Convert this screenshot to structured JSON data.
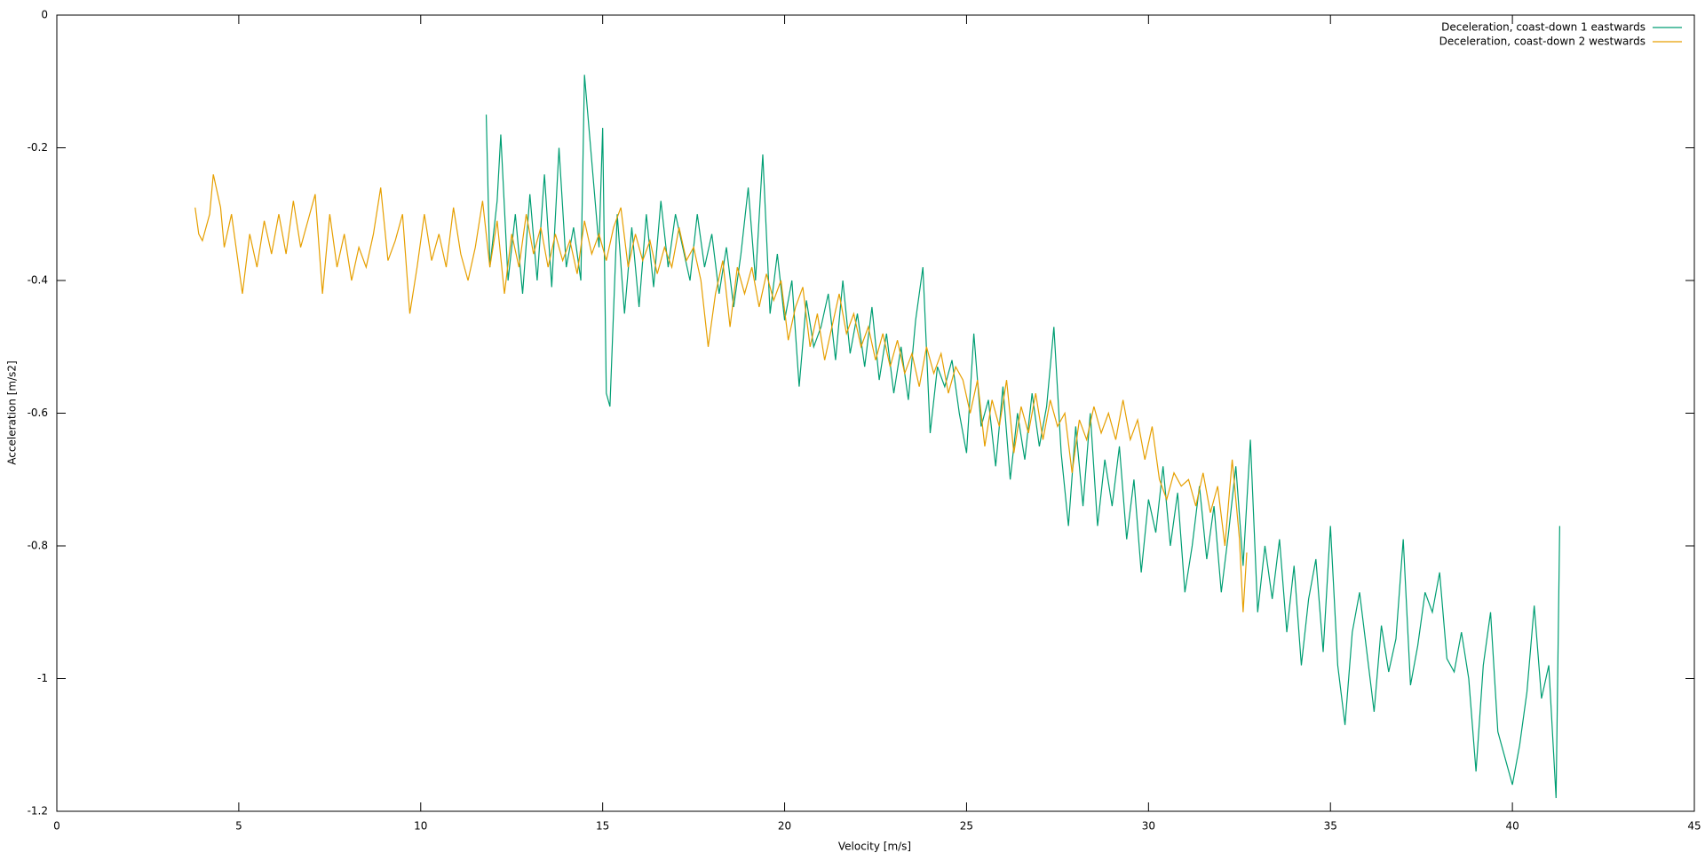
{
  "chart_data": {
    "type": "line",
    "xlabel": "Velocity [m/s]",
    "ylabel": "Acceleration [m/s2]",
    "xlim": [
      0,
      45
    ],
    "xticks": [
      0,
      5,
      10,
      15,
      20,
      25,
      30,
      35,
      40,
      45
    ],
    "ylim": [
      -1.2,
      0
    ],
    "yticks": [
      0,
      -0.2,
      -0.4,
      -0.6,
      -0.8,
      -1,
      -1.2
    ],
    "legend": "top-right",
    "series": [
      {
        "name": "Deceleration, coast-down 1 eastwards",
        "color": "#009e73",
        "x": [
          11.8,
          11.9,
          12.1,
          12.2,
          12.4,
          12.6,
          12.8,
          13.0,
          13.2,
          13.4,
          13.6,
          13.8,
          14.0,
          14.2,
          14.4,
          14.5,
          14.7,
          14.9,
          15.0,
          15.1,
          15.2,
          15.4,
          15.6,
          15.8,
          16.0,
          16.2,
          16.4,
          16.6,
          16.8,
          17.0,
          17.2,
          17.4,
          17.6,
          17.8,
          18.0,
          18.2,
          18.4,
          18.6,
          18.8,
          19.0,
          19.2,
          19.4,
          19.6,
          19.8,
          20.0,
          20.2,
          20.4,
          20.6,
          20.8,
          21.0,
          21.2,
          21.4,
          21.6,
          21.8,
          22.0,
          22.2,
          22.4,
          22.6,
          22.8,
          23.0,
          23.2,
          23.4,
          23.6,
          23.8,
          24.0,
          24.2,
          24.4,
          24.6,
          24.8,
          25.0,
          25.2,
          25.4,
          25.6,
          25.8,
          26.0,
          26.2,
          26.4,
          26.6,
          26.8,
          27.0,
          27.2,
          27.4,
          27.6,
          27.8,
          28.0,
          28.2,
          28.4,
          28.6,
          28.8,
          29.0,
          29.2,
          29.4,
          29.6,
          29.8,
          30.0,
          30.2,
          30.4,
          30.6,
          30.8,
          31.0,
          31.2,
          31.4,
          31.6,
          31.8,
          32.0,
          32.2,
          32.4,
          32.6,
          32.8,
          33.0,
          33.2,
          33.4,
          33.6,
          33.8,
          34.0,
          34.2,
          34.4,
          34.6,
          34.8,
          35.0,
          35.2,
          35.4,
          35.6,
          35.8,
          36.0,
          36.2,
          36.4,
          36.6,
          36.8,
          37.0,
          37.2,
          37.4,
          37.6,
          37.8,
          38.0,
          38.2,
          38.4,
          38.6,
          38.8,
          39.0,
          39.2,
          39.4,
          39.6,
          39.8,
          40.0,
          40.2,
          40.4,
          40.6,
          40.8,
          41.0,
          41.2,
          41.3
        ],
        "values": [
          -0.15,
          -0.38,
          -0.28,
          -0.18,
          -0.4,
          -0.3,
          -0.42,
          -0.27,
          -0.4,
          -0.24,
          -0.41,
          -0.2,
          -0.38,
          -0.32,
          -0.4,
          -0.09,
          -0.22,
          -0.35,
          -0.17,
          -0.57,
          -0.59,
          -0.3,
          -0.45,
          -0.32,
          -0.44,
          -0.3,
          -0.41,
          -0.28,
          -0.38,
          -0.3,
          -0.35,
          -0.4,
          -0.3,
          -0.38,
          -0.33,
          -0.42,
          -0.35,
          -0.44,
          -0.36,
          -0.26,
          -0.4,
          -0.21,
          -0.45,
          -0.36,
          -0.46,
          -0.4,
          -0.56,
          -0.43,
          -0.5,
          -0.47,
          -0.42,
          -0.52,
          -0.4,
          -0.51,
          -0.45,
          -0.53,
          -0.44,
          -0.55,
          -0.48,
          -0.57,
          -0.5,
          -0.58,
          -0.46,
          -0.38,
          -0.63,
          -0.53,
          -0.56,
          -0.52,
          -0.6,
          -0.66,
          -0.48,
          -0.62,
          -0.58,
          -0.68,
          -0.56,
          -0.7,
          -0.6,
          -0.67,
          -0.57,
          -0.65,
          -0.59,
          -0.47,
          -0.66,
          -0.77,
          -0.62,
          -0.74,
          -0.6,
          -0.77,
          -0.67,
          -0.74,
          -0.65,
          -0.79,
          -0.7,
          -0.84,
          -0.73,
          -0.78,
          -0.68,
          -0.8,
          -0.72,
          -0.87,
          -0.8,
          -0.71,
          -0.82,
          -0.74,
          -0.87,
          -0.78,
          -0.68,
          -0.83,
          -0.64,
          -0.9,
          -0.8,
          -0.88,
          -0.79,
          -0.93,
          -0.83,
          -0.98,
          -0.88,
          -0.82,
          -0.96,
          -0.77,
          -0.98,
          -1.07,
          -0.93,
          -0.87,
          -0.96,
          -1.05,
          -0.92,
          -0.99,
          -0.94,
          -0.79,
          -1.01,
          -0.95,
          -0.87,
          -0.9,
          -0.84,
          -0.97,
          -0.99,
          -0.93,
          -1.0,
          -1.14,
          -0.98,
          -0.9,
          -1.08,
          -1.12,
          -1.16,
          -1.1,
          -1.02,
          -0.89,
          -1.03,
          -0.98,
          -1.18,
          -0.77
        ]
      },
      {
        "name": "Deceleration, coast-down 2 westwards",
        "color": "#e69f00",
        "x": [
          3.8,
          3.9,
          4.0,
          4.2,
          4.3,
          4.5,
          4.6,
          4.8,
          5.0,
          5.1,
          5.3,
          5.5,
          5.7,
          5.9,
          6.1,
          6.3,
          6.5,
          6.7,
          6.9,
          7.1,
          7.3,
          7.5,
          7.7,
          7.9,
          8.1,
          8.3,
          8.5,
          8.7,
          8.9,
          9.1,
          9.3,
          9.5,
          9.7,
          9.9,
          10.1,
          10.3,
          10.5,
          10.7,
          10.9,
          11.1,
          11.3,
          11.5,
          11.7,
          11.9,
          12.1,
          12.3,
          12.5,
          12.7,
          12.9,
          13.1,
          13.3,
          13.5,
          13.7,
          13.9,
          14.1,
          14.3,
          14.5,
          14.7,
          14.9,
          15.1,
          15.3,
          15.5,
          15.7,
          15.9,
          16.1,
          16.3,
          16.5,
          16.7,
          16.9,
          17.1,
          17.3,
          17.5,
          17.7,
          17.9,
          18.1,
          18.3,
          18.5,
          18.7,
          18.9,
          19.1,
          19.3,
          19.5,
          19.7,
          19.9,
          20.1,
          20.3,
          20.5,
          20.7,
          20.9,
          21.1,
          21.3,
          21.5,
          21.7,
          21.9,
          22.1,
          22.3,
          22.5,
          22.7,
          22.9,
          23.1,
          23.3,
          23.5,
          23.7,
          23.9,
          24.1,
          24.3,
          24.5,
          24.7,
          24.9,
          25.1,
          25.3,
          25.5,
          25.7,
          25.9,
          26.1,
          26.3,
          26.5,
          26.7,
          26.9,
          27.1,
          27.3,
          27.5,
          27.7,
          27.9,
          28.1,
          28.3,
          28.5,
          28.7,
          28.9,
          29.1,
          29.3,
          29.5,
          29.7,
          29.9,
          30.1,
          30.3,
          30.5,
          30.7,
          30.9,
          31.1,
          31.3,
          31.5,
          31.7,
          31.9,
          32.1,
          32.3,
          32.5,
          32.6,
          32.7
        ],
        "values": [
          -0.29,
          -0.33,
          -0.34,
          -0.3,
          -0.24,
          -0.29,
          -0.35,
          -0.3,
          -0.38,
          -0.42,
          -0.33,
          -0.38,
          -0.31,
          -0.36,
          -0.3,
          -0.36,
          -0.28,
          -0.35,
          -0.31,
          -0.27,
          -0.42,
          -0.3,
          -0.38,
          -0.33,
          -0.4,
          -0.35,
          -0.38,
          -0.33,
          -0.26,
          -0.37,
          -0.34,
          -0.3,
          -0.45,
          -0.38,
          -0.3,
          -0.37,
          -0.33,
          -0.38,
          -0.29,
          -0.36,
          -0.4,
          -0.35,
          -0.28,
          -0.38,
          -0.31,
          -0.42,
          -0.33,
          -0.38,
          -0.3,
          -0.36,
          -0.32,
          -0.38,
          -0.33,
          -0.37,
          -0.34,
          -0.39,
          -0.31,
          -0.36,
          -0.33,
          -0.37,
          -0.32,
          -0.29,
          -0.38,
          -0.33,
          -0.37,
          -0.34,
          -0.39,
          -0.35,
          -0.38,
          -0.32,
          -0.37,
          -0.35,
          -0.4,
          -0.5,
          -0.42,
          -0.37,
          -0.47,
          -0.38,
          -0.42,
          -0.38,
          -0.44,
          -0.39,
          -0.43,
          -0.4,
          -0.49,
          -0.44,
          -0.41,
          -0.5,
          -0.45,
          -0.52,
          -0.47,
          -0.42,
          -0.48,
          -0.45,
          -0.5,
          -0.47,
          -0.52,
          -0.48,
          -0.53,
          -0.49,
          -0.54,
          -0.51,
          -0.56,
          -0.5,
          -0.54,
          -0.51,
          -0.57,
          -0.53,
          -0.55,
          -0.6,
          -0.55,
          -0.65,
          -0.58,
          -0.62,
          -0.55,
          -0.66,
          -0.59,
          -0.63,
          -0.57,
          -0.64,
          -0.58,
          -0.62,
          -0.6,
          -0.69,
          -0.61,
          -0.64,
          -0.59,
          -0.63,
          -0.6,
          -0.64,
          -0.58,
          -0.64,
          -0.61,
          -0.67,
          -0.62,
          -0.7,
          -0.73,
          -0.69,
          -0.71,
          -0.7,
          -0.74,
          -0.69,
          -0.75,
          -0.71,
          -0.8,
          -0.67,
          -0.79,
          -0.9,
          -0.81
        ]
      }
    ]
  }
}
